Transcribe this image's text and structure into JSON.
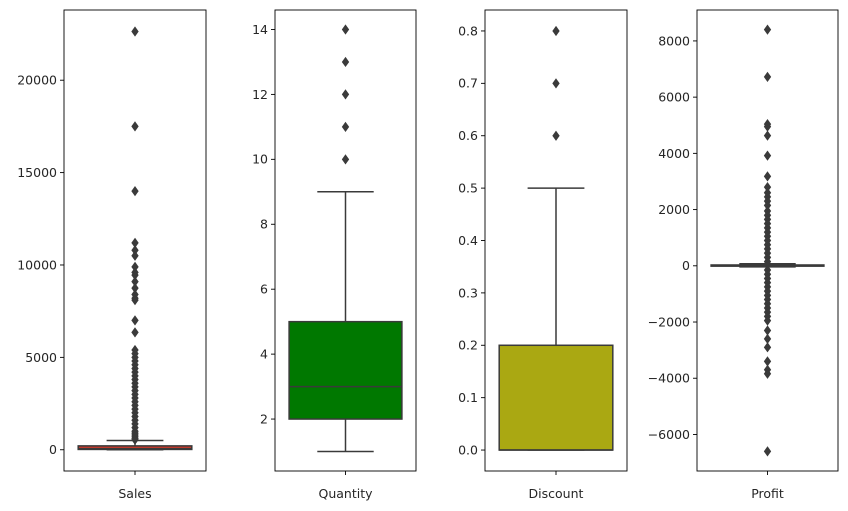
{
  "chart_data": [
    {
      "type": "box",
      "xlabel": "Sales",
      "ylim": [
        -1150,
        23800
      ],
      "yticks": [
        0,
        5000,
        10000,
        15000,
        20000
      ],
      "ytick_labels": [
        "0",
        "5000",
        "10000",
        "15000",
        "20000"
      ],
      "box_color": "#c0392b",
      "stats": {
        "whislo": 0.44,
        "q1": 17.3,
        "median": 54.5,
        "q3": 209.9,
        "whishi": 498.9
      },
      "outliers": [
        22638,
        17500,
        13999,
        11199,
        10800,
        10500,
        9900,
        9600,
        9450,
        9100,
        8750,
        8400,
        8200,
        8100,
        7000,
        6350,
        5400,
        5200,
        5000,
        4800,
        4600,
        4400,
        4200,
        4000,
        3800,
        3600,
        3400,
        3200,
        3000,
        2800,
        2600,
        2400,
        2200,
        2000,
        1800,
        1600,
        1400,
        1200,
        1000,
        900,
        800,
        700,
        600,
        540
      ]
    },
    {
      "type": "box",
      "xlabel": "Quantity",
      "ylim": [
        0.4,
        14.6
      ],
      "yticks": [
        2,
        4,
        6,
        8,
        10,
        12,
        14
      ],
      "ytick_labels": [
        "2",
        "4",
        "6",
        "8",
        "10",
        "12",
        "14"
      ],
      "box_color": "#007800",
      "stats": {
        "whislo": 1,
        "q1": 2,
        "median": 3,
        "q3": 5,
        "whishi": 9
      },
      "outliers": [
        10,
        11,
        12,
        13,
        14
      ]
    },
    {
      "type": "box",
      "xlabel": "Discount",
      "ylim": [
        -0.04,
        0.84
      ],
      "yticks": [
        0.0,
        0.1,
        0.2,
        0.3,
        0.4,
        0.5,
        0.6,
        0.7,
        0.8
      ],
      "ytick_labels": [
        "0.0",
        "0.1",
        "0.2",
        "0.3",
        "0.4",
        "0.5",
        "0.6",
        "0.7",
        "0.8"
      ],
      "box_color": "#aaa812",
      "stats": {
        "whislo": 0.0,
        "q1": 0.0,
        "median": 0.0,
        "q3": 0.2,
        "whishi": 0.5
      },
      "outliers": [
        0.6,
        0.7,
        0.8
      ]
    },
    {
      "type": "box",
      "xlabel": "Profit",
      "ylim": [
        -7300,
        9100
      ],
      "yticks": [
        -6000,
        -4000,
        -2000,
        0,
        2000,
        4000,
        6000,
        8000
      ],
      "ytick_labels": [
        "−6000",
        "−4000",
        "−2000",
        "0",
        "2000",
        "4000",
        "6000",
        "8000"
      ],
      "box_color": "#3498db",
      "stats": {
        "whislo": -39.7,
        "q1": 1.7,
        "median": 8.7,
        "q3": 29.4,
        "whishi": 70.7
      },
      "outliers": [
        8400,
        6720,
        5040,
        4950,
        4630,
        3920,
        3180,
        2800,
        2600,
        2450,
        2300,
        2150,
        1950,
        1800,
        1650,
        1500,
        1350,
        1200,
        1050,
        900,
        750,
        600,
        450,
        300,
        150,
        -150,
        -300,
        -450,
        -600,
        -750,
        -900,
        -1050,
        -1200,
        -1350,
        -1500,
        -1650,
        -1800,
        -1950,
        -2300,
        -2600,
        -2900,
        -3400,
        -3700,
        -3840,
        -6600
      ]
    }
  ]
}
